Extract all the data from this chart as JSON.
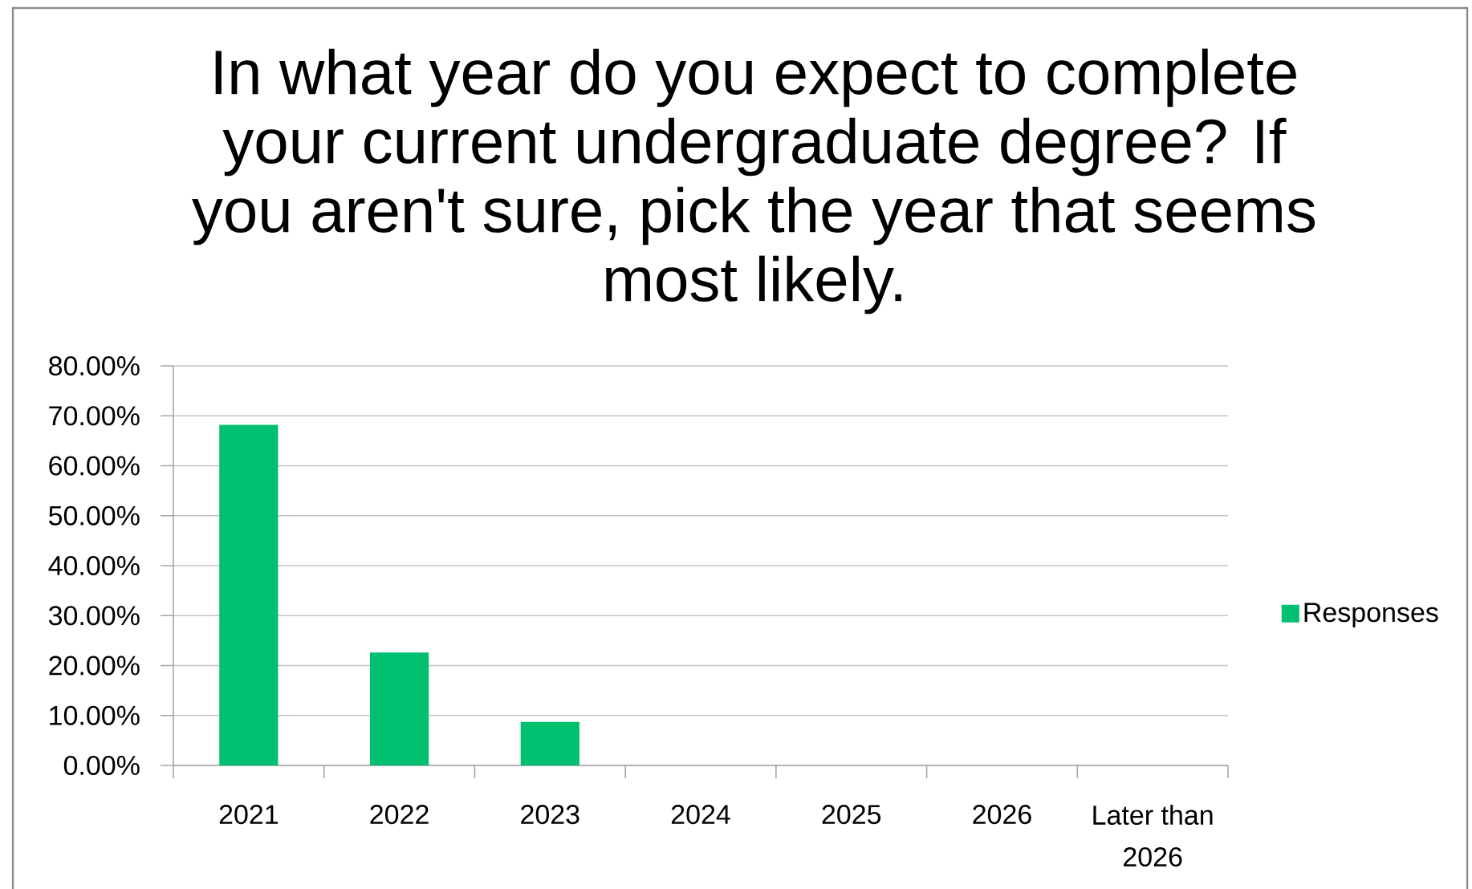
{
  "chart_data": {
    "type": "bar",
    "title": "In what year do you expect to complete your current undergraduate degree? If you aren't sure, pick the year that seems most likely.",
    "categories": [
      "2021",
      "2022",
      "2023",
      "2024",
      "2025",
      "2026",
      "Later than 2026"
    ],
    "series": [
      {
        "name": "Responses",
        "color": "#00bf6f",
        "values": [
          68.2,
          22.6,
          8.7,
          0,
          0,
          0,
          0
        ]
      }
    ],
    "ylim": [
      0,
      80
    ],
    "yticks": [
      {
        "value": 0,
        "label": "0.00%"
      },
      {
        "value": 10,
        "label": "10.00%"
      },
      {
        "value": 20,
        "label": "20.00%"
      },
      {
        "value": 30,
        "label": "30.00%"
      },
      {
        "value": 40,
        "label": "40.00%"
      },
      {
        "value": 50,
        "label": "50.00%"
      },
      {
        "value": 60,
        "label": "60.00%"
      },
      {
        "value": 70,
        "label": "70.00%"
      },
      {
        "value": 80,
        "label": "80.00%"
      }
    ],
    "grid": "y",
    "legend": "right"
  }
}
